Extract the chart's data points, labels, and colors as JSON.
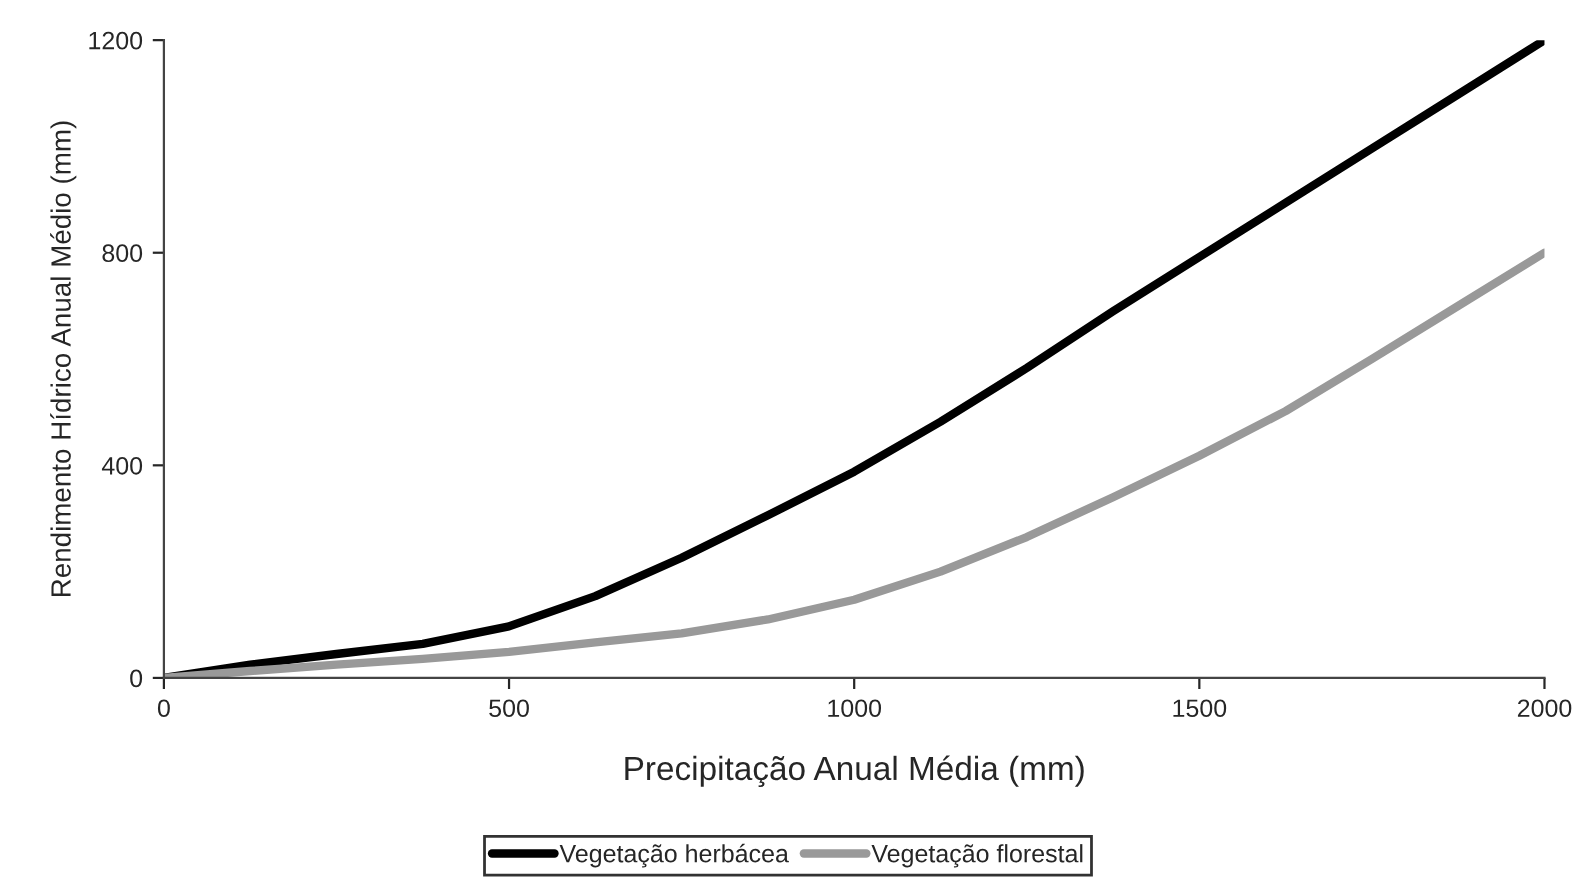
{
  "chart_data": {
    "type": "line",
    "xlabel": "Precipitação Anual Média (mm)",
    "ylabel": "Rendimento Hídrico Anual Médio (mm)",
    "x": [
      0,
      125,
      250,
      375,
      500,
      625,
      750,
      875,
      1000,
      1125,
      1250,
      1375,
      1500,
      1625,
      1750,
      1875,
      2000
    ],
    "series": [
      {
        "name": "Vegetação herbácea",
        "color": "#000000",
        "values": [
          0,
          25,
          45,
          64,
          97,
          154,
          226,
          306,
          388,
          482,
          583,
          690,
          792,
          894,
          996,
          1098,
          1200
        ]
      },
      {
        "name": "Vegetação florestal",
        "color": "#999999",
        "values": [
          0,
          13,
          25,
          36,
          49,
          67,
          84,
          110,
          147,
          200,
          265,
          340,
          418,
          502,
          600,
          700,
          800
        ]
      }
    ],
    "xlim": [
      0,
      2000
    ],
    "ylim": [
      0,
      1200
    ],
    "xticks": [
      0,
      500,
      1000,
      1500,
      2000
    ],
    "yticks": [
      0,
      400,
      800,
      1200
    ],
    "grid": false,
    "legend": "bottom",
    "line_style": "solid",
    "marker": "none"
  }
}
